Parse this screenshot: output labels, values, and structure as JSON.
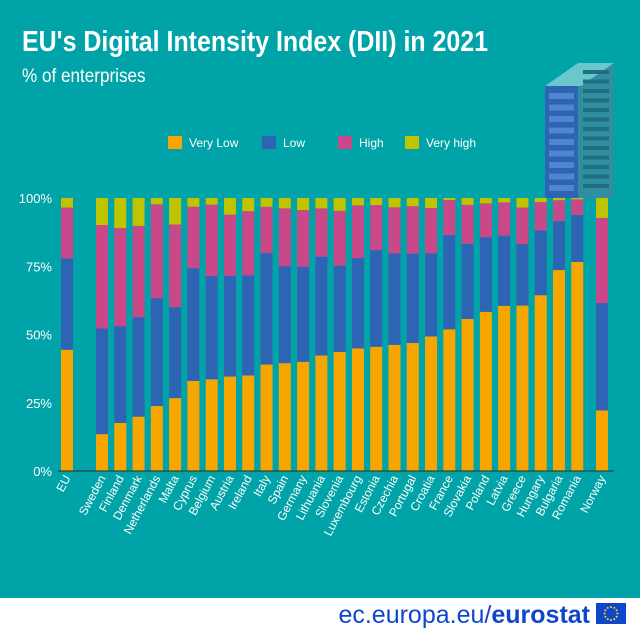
{
  "header": {
    "title": "EU's Digital Intensity Index (DII) in 2021",
    "subtitle": "% of enterprises"
  },
  "footer": {
    "source_domain": "ec.europa.eu/",
    "source_brand": "eurostat"
  },
  "colors": {
    "background": "#00A3A8",
    "very_low": "#F7A600",
    "low": "#2E64B4",
    "high": "#C9488A",
    "very_high": "#BEC400",
    "text": "#FFFFFF",
    "brand": "#0E47CB"
  },
  "chart_data": {
    "type": "bar",
    "stacked": true,
    "title": "EU's Digital Intensity Index (DII) in 2021",
    "subtitle": "% of enterprises",
    "xlabel": "",
    "ylabel": "",
    "ylim": [
      0,
      100
    ],
    "yticks": [
      "0%",
      "25%",
      "50%",
      "75%",
      "100%"
    ],
    "legend_position": "top",
    "grid": false,
    "categories": [
      "EU",
      "Sweden",
      "Finland",
      "Denmark",
      "Netherlands",
      "Malta",
      "Cyprus",
      "Belgium",
      "Austria",
      "Ireland",
      "Italy",
      "Spain",
      "Germany",
      "Lithuania",
      "Slovenia",
      "Luxembourg",
      "Estonia",
      "Czechia",
      "Portugal",
      "Croatia",
      "France",
      "Slovakia",
      "Poland",
      "Latvia",
      "Greece",
      "Hungary",
      "Bulgaria",
      "Romania",
      "Norway"
    ],
    "series": [
      {
        "name": "Very Low",
        "values": [
          44.4,
          13.5,
          17.6,
          19.9,
          23.8,
          26.7,
          33.0,
          33.6,
          34.6,
          35.0,
          39.0,
          39.5,
          40.0,
          42.3,
          43.6,
          44.9,
          45.5,
          46.2,
          46.9,
          49.3,
          51.9,
          55.7,
          58.3,
          60.5,
          60.6,
          64.4,
          73.6,
          76.6,
          22.2
        ]
      },
      {
        "name": "Low",
        "values": [
          33.5,
          38.7,
          35.4,
          36.4,
          39.5,
          33.3,
          41.3,
          37.8,
          36.9,
          36.6,
          40.8,
          35.5,
          34.8,
          36.2,
          31.6,
          33.1,
          35.4,
          33.5,
          32.7,
          30.4,
          34.5,
          27.5,
          27.3,
          25.7,
          22.5,
          23.7,
          17.9,
          17.2,
          39.3
        ]
      },
      {
        "name": "High",
        "values": [
          18.6,
          37.9,
          36.0,
          33.5,
          34.4,
          30.3,
          22.5,
          26.2,
          22.4,
          23.6,
          17.0,
          21.2,
          20.8,
          17.7,
          20.1,
          19.3,
          16.5,
          16.9,
          17.4,
          16.6,
          12.9,
          14.3,
          12.4,
          12.2,
          13.4,
          10.4,
          7.7,
          5.7,
          31.2
        ]
      },
      {
        "name": "Very high",
        "values": [
          3.5,
          9.9,
          11.0,
          10.2,
          2.3,
          9.7,
          3.2,
          2.4,
          6.1,
          4.8,
          3.2,
          3.8,
          4.4,
          3.8,
          4.7,
          2.7,
          2.6,
          3.4,
          3.0,
          3.7,
          0.7,
          2.5,
          2.0,
          1.6,
          3.5,
          1.5,
          0.8,
          0.5,
          7.3
        ]
      }
    ]
  }
}
